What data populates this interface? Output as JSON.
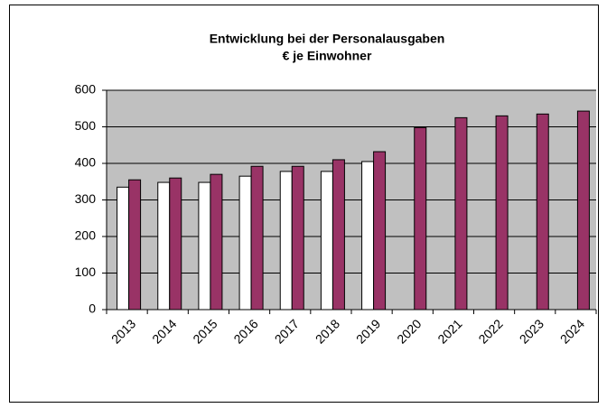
{
  "chart_data": {
    "type": "bar",
    "title": "Entwicklung bei der Personalausgaben",
    "subtitle": "€ je Einwohner",
    "categories": [
      "2013",
      "2014",
      "2015",
      "2016",
      "2017",
      "2018",
      "2019",
      "2020",
      "2021",
      "2022",
      "2023",
      "2024"
    ],
    "series": [
      {
        "color": "#ffffff",
        "values": [
          335,
          348,
          348,
          365,
          378,
          378,
          405,
          null,
          null,
          null,
          null,
          null
        ]
      },
      {
        "color": "#993366",
        "values": [
          355,
          360,
          370,
          392,
          392,
          410,
          432,
          498,
          525,
          530,
          535,
          543
        ]
      }
    ],
    "ylim": [
      0,
      600
    ],
    "yticks": [
      0,
      100,
      200,
      300,
      400,
      500,
      600
    ],
    "grid": true,
    "plot_background": "#c0c0c0"
  }
}
